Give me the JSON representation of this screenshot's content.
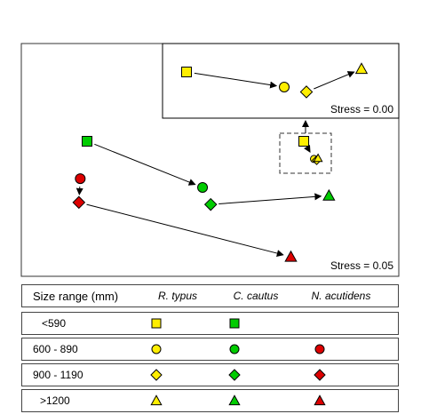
{
  "chart_data": {
    "type": "scatter",
    "description_free": true,
    "main_panel": {
      "stress_label": "Stress = 0.05",
      "points": [
        {
          "species": "C. cautus",
          "size": "<590",
          "x": 0.0,
          "y": 0.0
        },
        {
          "species": "C. cautus",
          "size": "600 - 890",
          "x": 1.7,
          "y": -0.68
        },
        {
          "species": "C. cautus",
          "size": "900 - 1190",
          "x": 1.82,
          "y": -0.93
        },
        {
          "species": "C. cautus",
          "size": ">1200",
          "x": 3.56,
          "y": -0.8
        },
        {
          "species": "N. acutidens",
          "size": "600 - 890",
          "x": -0.1,
          "y": -0.55
        },
        {
          "species": "N. acutidens",
          "size": "900 - 1190",
          "x": -0.12,
          "y": -0.9
        },
        {
          "species": "N. acutidens",
          "size": ">1200",
          "x": 3.0,
          "y": -1.7
        },
        {
          "species": "R. typus",
          "size": "<590",
          "x": 3.19,
          "y": 0.0
        },
        {
          "species": "R. typus",
          "size": "600 - 890",
          "x": 3.34,
          "y": -0.26
        },
        {
          "species": "R. typus",
          "size": "900 - 1190",
          "x": 3.38,
          "y": -0.28
        },
        {
          "species": "R. typus",
          "size": ">1200",
          "x": 3.4,
          "y": -0.25
        }
      ],
      "arrows": [
        [
          "C. cautus",
          "<590",
          "600 - 890"
        ],
        [
          "C. cautus",
          "900 - 1190",
          ">1200"
        ],
        [
          "N. acutidens",
          "600 - 890",
          "900 - 1190"
        ],
        [
          "N. acutidens",
          "900 - 1190",
          ">1200"
        ],
        [
          "R. typus",
          "<590",
          "600 - 890"
        ]
      ]
    },
    "inset_panel": {
      "stress_label": "Stress = 0.00",
      "points": [
        {
          "species": "R. typus",
          "size": "<590",
          "x": 0.0,
          "y": 0.0
        },
        {
          "species": "R. typus",
          "size": "600 - 890",
          "x": 1.1,
          "y": -0.25
        },
        {
          "species": "R. typus",
          "size": "900 - 1190",
          "x": 1.35,
          "y": -0.33
        },
        {
          "species": "R. typus",
          "size": ">1200",
          "x": 1.97,
          "y": 0.05
        }
      ],
      "arrows": [
        [
          "R. typus",
          "<590",
          "600 - 890"
        ],
        [
          "R. typus",
          "900 - 1190",
          ">1200"
        ]
      ]
    },
    "legend": {
      "header": "Size range (mm)",
      "species": [
        "R. typus",
        "C. cautus",
        "N. acutidens"
      ],
      "rows": [
        {
          "label": "<590",
          "present": [
            true,
            true,
            false
          ]
        },
        {
          "label": "600 - 890",
          "present": [
            true,
            true,
            true
          ]
        },
        {
          "label": "900 - 1190",
          "present": [
            true,
            true,
            true
          ]
        },
        {
          "label": ">1200",
          "present": [
            true,
            true,
            true
          ]
        }
      ]
    },
    "colors": {
      "R. typus": "#ffee00",
      "C. cautus": "#00cc00",
      "N. acutidens": "#dd0000"
    },
    "shapes": {
      "<590": "square",
      "600 - 890": "circle",
      "900 - 1190": "diamond",
      ">1200": "triangle"
    }
  }
}
